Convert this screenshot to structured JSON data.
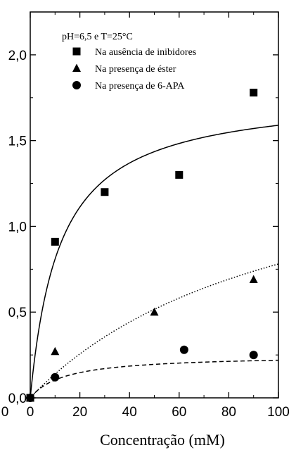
{
  "chart_data": {
    "type": "scatter",
    "title": "",
    "xlabel": "Concentração (mM)",
    "ylabel": "",
    "xlim": [
      0,
      100
    ],
    "ylim": [
      0,
      2.25
    ],
    "x_ticks": [
      0,
      20,
      40,
      60,
      80,
      100
    ],
    "x_tick_labels": [
      "0",
      "20",
      "40",
      "60",
      "80",
      "100"
    ],
    "y_ticks": [
      0,
      0.5,
      1.0,
      1.5,
      2.0
    ],
    "y_tick_labels": [
      "0,0",
      "0,5",
      "1,0",
      "1,5",
      "2,0"
    ],
    "extra_x_tick_label": "0",
    "condition_text": "pH=6,5 e T=25°C",
    "grid": false,
    "legend_position": "top",
    "series": [
      {
        "name": "Na ausência de inibidores",
        "marker": "square",
        "x": [
          0,
          10,
          30,
          60,
          90
        ],
        "y": [
          0,
          0.91,
          1.2,
          1.3,
          1.78
        ]
      },
      {
        "name": "Na presença de éster",
        "marker": "triangle",
        "x": [
          0,
          10,
          50,
          90
        ],
        "y": [
          0,
          0.27,
          0.5,
          0.69
        ]
      },
      {
        "name": "Na presença de 6-APA",
        "marker": "circle",
        "x": [
          0,
          10,
          62,
          90
        ],
        "y": [
          0,
          0.12,
          0.28,
          0.25
        ]
      }
    ],
    "fit_curves": [
      {
        "style": "solid",
        "vmax": 1.78,
        "km": 12
      },
      {
        "style": "dotted",
        "vmax": 1.6,
        "km": 105
      },
      {
        "style": "dashed",
        "vmax": 0.25,
        "km": 14
      }
    ]
  }
}
